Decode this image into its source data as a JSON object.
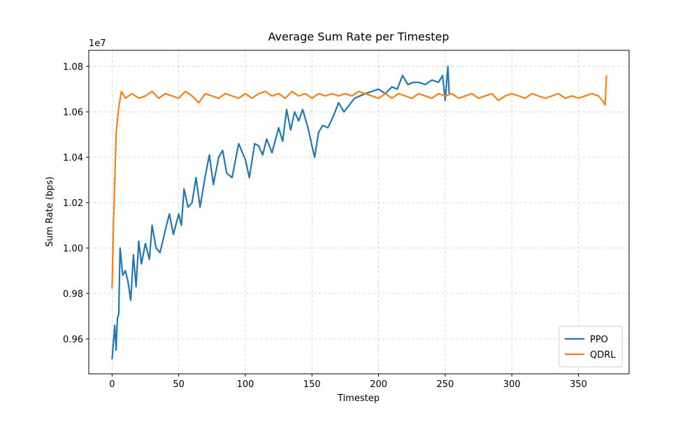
{
  "chart_data": {
    "type": "line",
    "title": "Average Sum Rate per Timestep",
    "x_label": "Timestep",
    "y_label": "Sum Rate (bps)",
    "y_offset_label": "1e7",
    "xlim": [
      -17.5,
      388
    ],
    "ylim": [
      0.9446,
      1.0871
    ],
    "xticks": [
      0,
      50,
      100,
      150,
      200,
      250,
      300,
      350
    ],
    "yticks": [
      0.96,
      0.98,
      {
        "value": 1,
        "label": "1.00"
      },
      1.02,
      1.04,
      1.06,
      1.08
    ],
    "grid": true,
    "legend": "lower right",
    "series": [
      {
        "name": "PPO",
        "color": "#1f77b4",
        "x": [
          0,
          2,
          3,
          4,
          5,
          6,
          8,
          10,
          12,
          14,
          16,
          18,
          20,
          22,
          25,
          28,
          30,
          33,
          36,
          40,
          43,
          46,
          50,
          52,
          54,
          57,
          60,
          63,
          66,
          70,
          73,
          76,
          80,
          83,
          86,
          90,
          95,
          100,
          103,
          107,
          110,
          113,
          116,
          120,
          125,
          128,
          131,
          134,
          137,
          140,
          143,
          147,
          150,
          152,
          155,
          158,
          162,
          166,
          170,
          174,
          178,
          182,
          186,
          190,
          195,
          200,
          205,
          210,
          214,
          218,
          222,
          226,
          230,
          235,
          240,
          245,
          248,
          250,
          252,
          253
        ],
        "values": [
          0.951,
          0.966,
          0.955,
          0.969,
          0.971,
          1.0,
          0.988,
          0.99,
          0.985,
          0.977,
          0.997,
          0.983,
          1.003,
          0.993,
          1.002,
          0.995,
          1.01,
          1.0,
          0.998,
          1.008,
          1.015,
          1.006,
          1.015,
          1.01,
          1.026,
          1.018,
          1.02,
          1.031,
          1.018,
          1.032,
          1.041,
          1.028,
          1.04,
          1.043,
          1.033,
          1.031,
          1.046,
          1.039,
          1.031,
          1.046,
          1.045,
          1.041,
          1.048,
          1.042,
          1.053,
          1.047,
          1.061,
          1.052,
          1.06,
          1.056,
          1.061,
          1.053,
          1.045,
          1.04,
          1.051,
          1.054,
          1.053,
          1.058,
          1.064,
          1.06,
          1.063,
          1.066,
          1.067,
          1.068,
          1.069,
          1.07,
          1.068,
          1.071,
          1.07,
          1.076,
          1.072,
          1.073,
          1.073,
          1.072,
          1.074,
          1.073,
          1.076,
          1.065,
          1.08,
          1.068
        ]
      },
      {
        "name": "QDRL",
        "color": "#ff7f0e",
        "x": [
          0,
          1,
          3,
          5,
          7,
          10,
          15,
          20,
          25,
          30,
          35,
          40,
          45,
          50,
          55,
          60,
          65,
          70,
          75,
          80,
          85,
          90,
          95,
          100,
          105,
          110,
          115,
          120,
          125,
          130,
          135,
          140,
          145,
          150,
          155,
          160,
          165,
          170,
          175,
          180,
          185,
          190,
          195,
          200,
          205,
          210,
          215,
          220,
          225,
          230,
          235,
          240,
          245,
          250,
          255,
          260,
          265,
          270,
          275,
          280,
          285,
          290,
          295,
          300,
          305,
          310,
          315,
          320,
          325,
          330,
          335,
          340,
          345,
          350,
          355,
          360,
          365,
          368,
          370,
          371
        ],
        "values": [
          0.982,
          1.01,
          1.05,
          1.062,
          1.069,
          1.066,
          1.068,
          1.066,
          1.067,
          1.069,
          1.066,
          1.068,
          1.067,
          1.066,
          1.069,
          1.067,
          1.064,
          1.068,
          1.067,
          1.066,
          1.068,
          1.067,
          1.066,
          1.068,
          1.066,
          1.068,
          1.069,
          1.067,
          1.068,
          1.066,
          1.069,
          1.067,
          1.068,
          1.066,
          1.068,
          1.067,
          1.068,
          1.067,
          1.068,
          1.067,
          1.069,
          1.068,
          1.067,
          1.066,
          1.068,
          1.066,
          1.068,
          1.067,
          1.066,
          1.068,
          1.067,
          1.066,
          1.068,
          1.067,
          1.068,
          1.066,
          1.067,
          1.068,
          1.066,
          1.067,
          1.068,
          1.065,
          1.067,
          1.068,
          1.067,
          1.066,
          1.068,
          1.067,
          1.066,
          1.067,
          1.068,
          1.066,
          1.067,
          1.066,
          1.067,
          1.068,
          1.067,
          1.065,
          1.063,
          1.076
        ]
      }
    ]
  }
}
